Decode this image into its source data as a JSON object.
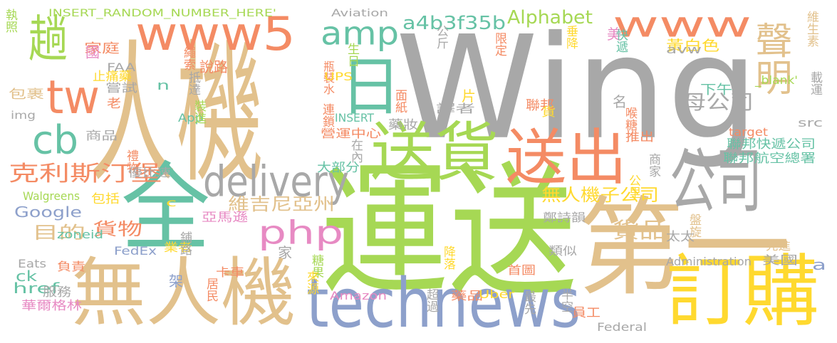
{
  "palette": {
    "gray": "#a8a8a8",
    "tan": "#e2c18c",
    "teal": "#66c2a5",
    "orange": "#f48b64",
    "green": "#a6d854",
    "yellow": "#ffd92f",
    "blue": "#8da0cb",
    "pink": "#e78ac3"
  },
  "words": [
    {
      "text": "Wing",
      "color": "gray"
    },
    {
      "text": "人機",
      "color": "tan"
    },
    {
      "text": "運送",
      "color": "green"
    },
    {
      "text": "全",
      "color": "teal"
    },
    {
      "text": "第一",
      "color": "tan"
    },
    {
      "text": "無人機",
      "color": "tan"
    },
    {
      "text": "www5",
      "color": "orange"
    },
    {
      "text": "www",
      "color": "orange"
    },
    {
      "text": "technews",
      "color": "blue"
    },
    {
      "text": "送貨",
      "color": "green"
    },
    {
      "text": "送出",
      "color": "orange"
    },
    {
      "text": "公司",
      "color": "gray"
    },
    {
      "text": "訂購",
      "color": "yellow"
    },
    {
      "text": "日",
      "color": "teal"
    },
    {
      "text": "趟",
      "color": "green"
    },
    {
      "text": "tw",
      "color": "orange"
    },
    {
      "text": "amp",
      "color": "teal"
    },
    {
      "text": "delivery",
      "color": "gray"
    },
    {
      "text": "聲明",
      "color": "tan"
    },
    {
      "text": "cb",
      "color": "teal"
    },
    {
      "text": "php",
      "color": "pink"
    },
    {
      "text": "克利斯汀堡",
      "color": "orange"
    },
    {
      "text": "a4b3f35b",
      "color": "teal"
    },
    {
      "text": "Alphabet",
      "color": "green"
    },
    {
      "text": "母公司",
      "color": "gray"
    },
    {
      "text": "無人機子公司",
      "color": "yellow"
    },
    {
      "text": "維吉尼亞州",
      "color": "tan"
    },
    {
      "text": "目的",
      "color": "tan"
    },
    {
      "text": "貨物",
      "color": "orange"
    },
    {
      "text": "貨品",
      "color": "tan"
    },
    {
      "text": "INSERT_RANDOM_NUMBER_HERE'",
      "color": "green"
    },
    {
      "text": "Aviation",
      "color": "gray"
    },
    {
      "text": "Google",
      "color": "blue"
    },
    {
      "text": "href",
      "color": "teal"
    },
    {
      "text": "ck",
      "color": "teal"
    },
    {
      "text": "生日",
      "color": "green"
    },
    {
      "text": "美",
      "color": "pink"
    },
    {
      "text": "垂降",
      "color": "yellow"
    },
    {
      "text": "快遞",
      "color": "teal"
    },
    {
      "text": "公斤",
      "color": "gray"
    },
    {
      "text": "限定",
      "color": "orange"
    },
    {
      "text": "維生素",
      "color": "tan"
    },
    {
      "text": "黃白色",
      "color": "yellow"
    },
    {
      "text": "avw",
      "color": "gray"
    },
    {
      "text": "瓶裝水",
      "color": "orange"
    },
    {
      "text": "UPS",
      "color": "yellow"
    },
    {
      "text": "執照",
      "color": "green"
    },
    {
      "text": "家庭",
      "color": "orange"
    },
    {
      "text": "國",
      "color": "pink"
    },
    {
      "text": "FAA",
      "color": "gray"
    },
    {
      "text": "繩索",
      "color": "orange"
    },
    {
      "text": "說",
      "color": "orange"
    },
    {
      "text": "路",
      "color": "orange"
    },
    {
      "text": "止痛藥",
      "color": "yellow"
    },
    {
      "text": "嘗試",
      "color": "gray"
    },
    {
      "text": "包裹",
      "color": "tan"
    },
    {
      "text": "img",
      "color": "gray"
    },
    {
      "text": "抵達",
      "color": "gray"
    },
    {
      "text": "n",
      "color": "teal"
    },
    {
      "text": "老",
      "color": "orange"
    },
    {
      "text": "面紙",
      "color": "orange"
    },
    {
      "text": "片",
      "color": "yellow"
    },
    {
      "text": "聯邦",
      "color": "orange"
    },
    {
      "text": "下午",
      "color": "teal"
    },
    {
      "text": "_blank'",
      "color": "green"
    },
    {
      "text": "載運",
      "color": "gray"
    },
    {
      "text": "連鎖",
      "color": "orange"
    },
    {
      "text": "藥妝",
      "color": "gray"
    },
    {
      "text": "名",
      "color": "gray"
    },
    {
      "text": "喉糖",
      "color": "orange"
    },
    {
      "text": "貨",
      "color": "yellow"
    },
    {
      "text": "譯者",
      "color": "gray"
    },
    {
      "text": "App",
      "color": "teal"
    },
    {
      "text": "裝進",
      "color": "green"
    },
    {
      "text": "INSERT",
      "color": "teal"
    },
    {
      "text": "商品",
      "color": "gray"
    },
    {
      "text": "營運中心",
      "color": "orange"
    },
    {
      "text": "推出",
      "color": "orange"
    },
    {
      "text": "target",
      "color": "orange"
    },
    {
      "text": "src",
      "color": "gray"
    },
    {
      "text": "在內",
      "color": "gray"
    },
    {
      "text": "聯邦快遞公司",
      "color": "teal"
    },
    {
      "text": "聯邦航空總署",
      "color": "teal"
    },
    {
      "text": "禮物",
      "color": "orange"
    },
    {
      "text": "商家",
      "color": "gray"
    },
    {
      "text": "大部分",
      "color": "teal"
    },
    {
      "text": "優比速",
      "color": "gray"
    },
    {
      "text": "公里",
      "color": "yellow"
    },
    {
      "text": "Walgreens",
      "color": "green"
    },
    {
      "text": "包括",
      "color": "yellow"
    },
    {
      "text": "c",
      "color": "yellow"
    },
    {
      "text": "亞馬遜",
      "color": "pink"
    },
    {
      "text": "鄭詩韻",
      "color": "gray"
    },
    {
      "text": "盤旋",
      "color": "tan"
    },
    {
      "text": "太太",
      "color": "gray"
    },
    {
      "text": "zoneid",
      "color": "teal"
    },
    {
      "text": "業者",
      "color": "yellow"
    },
    {
      "text": "鋪路",
      "color": "gray"
    },
    {
      "text": "家",
      "color": "gray"
    },
    {
      "text": "先進",
      "color": "tan"
    },
    {
      "text": "FedEx",
      "color": "blue"
    },
    {
      "text": "類似",
      "color": "gray"
    },
    {
      "text": "降落",
      "color": "yellow"
    },
    {
      "text": "美國",
      "color": "gray"
    },
    {
      "text": "Eats",
      "color": "gray"
    },
    {
      "text": "糖果",
      "color": "green"
    },
    {
      "text": "負責",
      "color": "orange"
    },
    {
      "text": "Administration",
      "color": "gray"
    },
    {
      "text": "來源",
      "color": "yellow"
    },
    {
      "text": "首圖",
      "color": "orange"
    },
    {
      "text": "卡車",
      "color": "orange"
    },
    {
      "text": "a",
      "color": "blue"
    },
    {
      "text": "架",
      "color": "blue"
    },
    {
      "text": "居民",
      "color": "orange"
    },
    {
      "text": "服務",
      "color": "gray"
    },
    {
      "text": "Amazon",
      "color": "pink"
    },
    {
      "text": "華爾格林",
      "color": "pink"
    },
    {
      "text": "超過",
      "color": "gray"
    },
    {
      "text": "藥品",
      "color": "orange"
    },
    {
      "text": "Uber",
      "color": "yellow"
    },
    {
      "text": "最先",
      "color": "gray"
    },
    {
      "text": "半空",
      "color": "gray"
    },
    {
      "text": "員工",
      "color": "orange"
    },
    {
      "text": "Federal",
      "color": "gray"
    }
  ]
}
